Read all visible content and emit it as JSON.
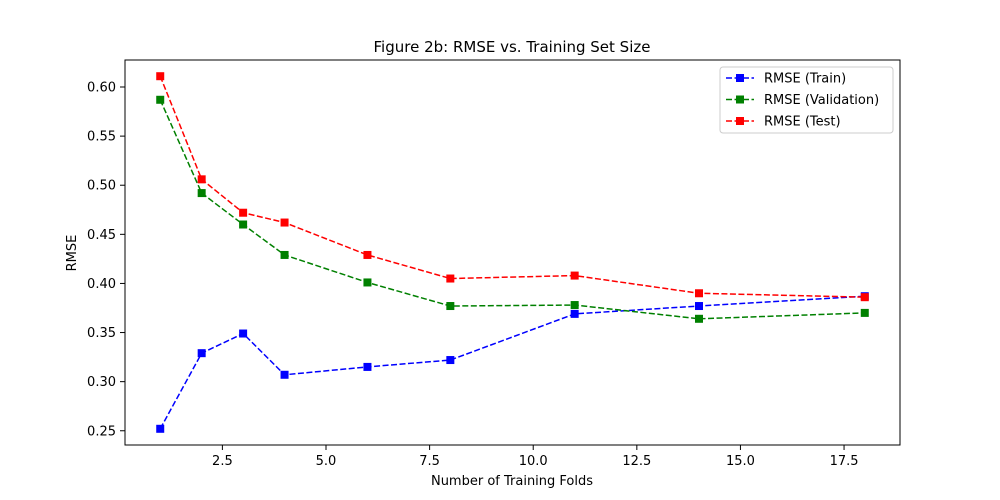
{
  "chart_data": {
    "type": "line",
    "title": "Figure 2b: RMSE vs. Training Set Size",
    "xlabel": "Number of Training Folds",
    "ylabel": "RMSE",
    "xlim": [
      0.15,
      18.85
    ],
    "ylim": [
      0.2355,
      0.6275
    ],
    "xticks": [
      2.5,
      5.0,
      7.5,
      10.0,
      12.5,
      15.0,
      17.5
    ],
    "xtick_labels": [
      "2.5",
      "5.0",
      "7.5",
      "10.0",
      "12.5",
      "15.0",
      "17.5"
    ],
    "yticks": [
      0.25,
      0.3,
      0.35,
      0.4,
      0.45,
      0.5,
      0.55,
      0.6
    ],
    "ytick_labels": [
      "0.25",
      "0.30",
      "0.35",
      "0.40",
      "0.45",
      "0.50",
      "0.55",
      "0.60"
    ],
    "grid": false,
    "legend_position": "top-right",
    "x": [
      1,
      2,
      3,
      4,
      6,
      8,
      11,
      14,
      18
    ],
    "series": [
      {
        "name": "RMSE (Train)",
        "color": "#0000ff",
        "marker": "square",
        "linestyle": "dashed",
        "values": [
          0.252,
          0.329,
          0.349,
          0.307,
          0.315,
          0.322,
          0.369,
          0.377,
          0.387
        ]
      },
      {
        "name": "RMSE (Validation)",
        "color": "#008000",
        "marker": "square",
        "linestyle": "dashed",
        "values": [
          0.587,
          0.492,
          0.46,
          0.429,
          0.401,
          0.377,
          0.378,
          0.364,
          0.37
        ]
      },
      {
        "name": "RMSE (Test)",
        "color": "#ff0000",
        "marker": "square",
        "linestyle": "dashed",
        "values": [
          0.611,
          0.506,
          0.472,
          0.462,
          0.429,
          0.405,
          0.408,
          0.39,
          0.386
        ]
      }
    ]
  }
}
